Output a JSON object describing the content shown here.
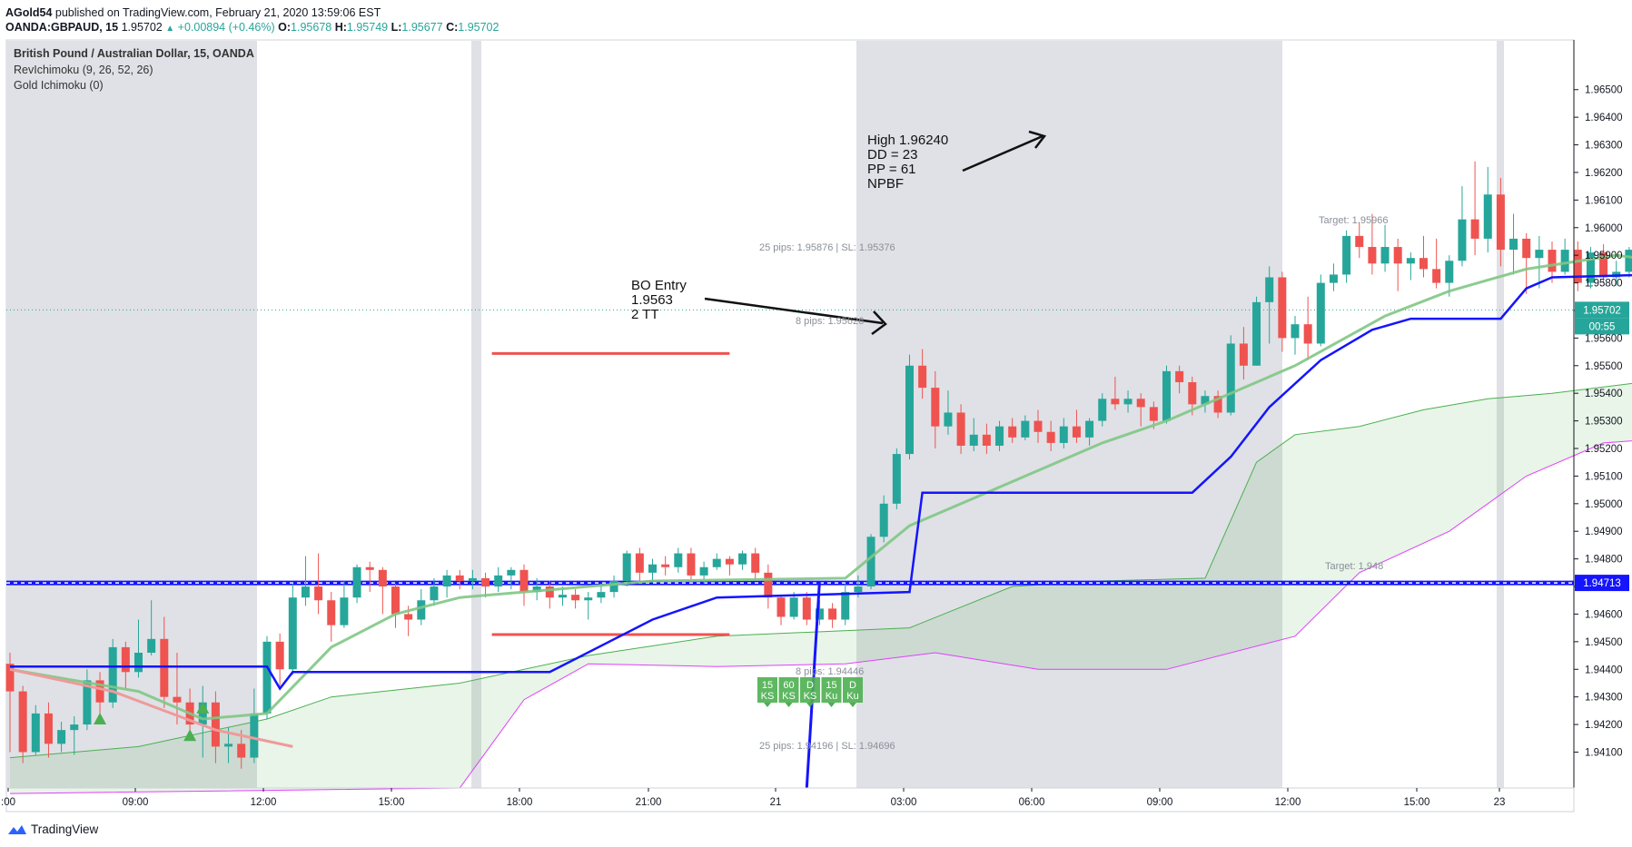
{
  "header": {
    "user": "AGold54",
    "published_text": "published on TradingView.com, February 21, 2020 13:59:06 EST",
    "symbol": "OANDA:GBPAUD, 15",
    "last": "1.95702",
    "change": "+0.00894 (+0.46%)",
    "o_label": "O:",
    "o": "1.95678",
    "h_label": "H:",
    "h": "1.95749",
    "l_label": "L:",
    "l": "1.95677",
    "c_label": "C:",
    "c": "1.95702"
  },
  "legend": {
    "title": "British Pound / Australian Dollar, 15, OANDA",
    "ind1": "RevIchimoku (9, 26, 52, 26)",
    "ind2": "Gold Ichimoku (0)"
  },
  "brand": {
    "name": "TradingView"
  },
  "chart_data": {
    "type": "candlestick",
    "ylim": [
      1.9397,
      1.9668
    ],
    "y_ticks": [
      "1.96500",
      "1.96400",
      "1.96300",
      "1.96200",
      "1.96100",
      "1.96000",
      "1.95900",
      "1.95800",
      "1.95700",
      "1.95600",
      "1.95500",
      "1.95400",
      "1.95300",
      "1.95200",
      "1.95100",
      "1.95000",
      "1.94900",
      "1.94800",
      "1.94700",
      "1.94600",
      "1.94500",
      "1.94400",
      "1.94300",
      "1.94200",
      "1.94100"
    ],
    "x_ticks": [
      ":00",
      "09:00",
      "12:00",
      "15:00",
      "18:00",
      "21:00",
      "21",
      "03:00",
      "06:00",
      "09:00",
      "12:00",
      "15:00",
      "23"
    ],
    "price_badges": [
      {
        "label": "1.95702",
        "value": 1.95702,
        "color": "#26a69a"
      },
      {
        "label": "00:55",
        "value": 1.9565,
        "color": "#26a69a"
      },
      {
        "label": "1.94713",
        "value": 1.94713,
        "color": "#1414ff"
      }
    ],
    "horizontal_levels": [
      {
        "value": 1.94713,
        "color": "#1414ff"
      },
      {
        "value": 1.95544,
        "color": "#ef5350"
      },
      {
        "value": 1.94526,
        "color": "#ef5350"
      }
    ],
    "candles": [
      [
        1.9442,
        1.9432,
        1.9446,
        1.941
      ],
      [
        1.9432,
        1.941,
        1.9434,
        1.9406
      ],
      [
        1.941,
        1.9424,
        1.9427,
        1.9409
      ],
      [
        1.9424,
        1.9413,
        1.9428,
        1.9408
      ],
      [
        1.9413,
        1.9418,
        1.9421,
        1.941
      ],
      [
        1.9418,
        1.942,
        1.9423,
        1.9409
      ],
      [
        1.942,
        1.9436,
        1.944,
        1.9418
      ],
      [
        1.9436,
        1.9428,
        1.9439,
        1.9422
      ],
      [
        1.9428,
        1.9448,
        1.9451,
        1.9426
      ],
      [
        1.9448,
        1.9439,
        1.945,
        1.9433
      ],
      [
        1.9439,
        1.9446,
        1.9458,
        1.9437
      ],
      [
        1.9446,
        1.9451,
        1.9465,
        1.9445
      ],
      [
        1.9451,
        1.943,
        1.9459,
        1.9426
      ],
      [
        1.943,
        1.9428,
        1.9446,
        1.942
      ],
      [
        1.9428,
        1.942,
        1.9433,
        1.9415
      ],
      [
        1.942,
        1.9428,
        1.9434,
        1.9408
      ],
      [
        1.9428,
        1.9412,
        1.9432,
        1.9406
      ],
      [
        1.9412,
        1.9413,
        1.9419,
        1.9406
      ],
      [
        1.9413,
        1.9408,
        1.9418,
        1.9404
      ],
      [
        1.9408,
        1.9424,
        1.9433,
        1.9406
      ],
      [
        1.9424,
        1.945,
        1.9452,
        1.9422
      ],
      [
        1.945,
        1.944,
        1.9453,
        1.9434
      ],
      [
        1.944,
        1.9466,
        1.9471,
        1.9438
      ],
      [
        1.9466,
        1.947,
        1.9481,
        1.9463
      ],
      [
        1.947,
        1.9465,
        1.9482,
        1.946
      ],
      [
        1.9465,
        1.9456,
        1.9468,
        1.945
      ],
      [
        1.9456,
        1.9466,
        1.9472,
        1.9455
      ],
      [
        1.9466,
        1.9477,
        1.9478,
        1.9464
      ],
      [
        1.9477,
        1.9476,
        1.9479,
        1.9468
      ],
      [
        1.9476,
        1.947,
        1.9477,
        1.946
      ],
      [
        1.947,
        1.946,
        1.9471,
        1.9455
      ],
      [
        1.946,
        1.9458,
        1.9463,
        1.9452
      ],
      [
        1.9458,
        1.9465,
        1.9469,
        1.9456
      ],
      [
        1.9465,
        1.947,
        1.9473,
        1.9463
      ],
      [
        1.947,
        1.9474,
        1.9476,
        1.9466
      ],
      [
        1.9474,
        1.9472,
        1.9476,
        1.9469
      ],
      [
        1.9472,
        1.9473,
        1.9476,
        1.9469
      ],
      [
        1.9473,
        1.947,
        1.9475,
        1.9466
      ],
      [
        1.947,
        1.9474,
        1.9477,
        1.9468
      ],
      [
        1.9474,
        1.9476,
        1.9477,
        1.9469
      ],
      [
        1.9476,
        1.9468,
        1.9478,
        1.9463
      ],
      [
        1.9468,
        1.947,
        1.9473,
        1.9465
      ],
      [
        1.947,
        1.9466,
        1.9472,
        1.9462
      ],
      [
        1.9466,
        1.9467,
        1.947,
        1.9463
      ],
      [
        1.9467,
        1.9465,
        1.9469,
        1.9462
      ],
      [
        1.9465,
        1.9466,
        1.9468,
        1.9458
      ],
      [
        1.9466,
        1.9468,
        1.9471,
        1.9464
      ],
      [
        1.9468,
        1.9472,
        1.9474,
        1.9466
      ],
      [
        1.9472,
        1.9482,
        1.9483,
        1.947
      ],
      [
        1.9482,
        1.9475,
        1.9484,
        1.9472
      ],
      [
        1.9475,
        1.9478,
        1.948,
        1.9472
      ],
      [
        1.9478,
        1.9477,
        1.9481,
        1.9474
      ],
      [
        1.9477,
        1.9482,
        1.9484,
        1.9475
      ],
      [
        1.9482,
        1.9474,
        1.9484,
        1.9472
      ],
      [
        1.9474,
        1.9477,
        1.9479,
        1.9471
      ],
      [
        1.9477,
        1.948,
        1.9482,
        1.9476
      ],
      [
        1.948,
        1.9478,
        1.9481,
        1.9474
      ],
      [
        1.9478,
        1.9482,
        1.9483,
        1.9476
      ],
      [
        1.9482,
        1.9475,
        1.9484,
        1.9472
      ],
      [
        1.9475,
        1.9466,
        1.9478,
        1.9462
      ],
      [
        1.9466,
        1.9459,
        1.9467,
        1.9456
      ],
      [
        1.9459,
        1.9466,
        1.9468,
        1.9458
      ],
      [
        1.9466,
        1.9458,
        1.9468,
        1.9456
      ],
      [
        1.9458,
        1.9462,
        1.9465,
        1.9456
      ],
      [
        1.9462,
        1.9458,
        1.9464,
        1.9455
      ],
      [
        1.9458,
        1.9468,
        1.9471,
        1.9456
      ],
      [
        1.9468,
        1.947,
        1.9474,
        1.9466
      ],
      [
        1.947,
        1.9488,
        1.9489,
        1.9469
      ],
      [
        1.9488,
        1.95,
        1.9503,
        1.9486
      ],
      [
        1.95,
        1.9518,
        1.952,
        1.9498
      ],
      [
        1.9518,
        1.955,
        1.9554,
        1.9516
      ],
      [
        1.955,
        1.9542,
        1.9556,
        1.9538
      ],
      [
        1.9542,
        1.9528,
        1.9548,
        1.952
      ],
      [
        1.9528,
        1.9533,
        1.9541,
        1.9525
      ],
      [
        1.9533,
        1.9521,
        1.9536,
        1.9518
      ],
      [
        1.9521,
        1.9525,
        1.9531,
        1.9519
      ],
      [
        1.9525,
        1.9521,
        1.9529,
        1.9518
      ],
      [
        1.9521,
        1.9528,
        1.953,
        1.9519
      ],
      [
        1.9528,
        1.9524,
        1.9531,
        1.9522
      ],
      [
        1.9524,
        1.953,
        1.9532,
        1.9523
      ],
      [
        1.953,
        1.9526,
        1.9534,
        1.9522
      ],
      [
        1.9526,
        1.9522,
        1.953,
        1.9519
      ],
      [
        1.9522,
        1.9528,
        1.9531,
        1.952
      ],
      [
        1.9528,
        1.9524,
        1.9534,
        1.9522
      ],
      [
        1.9524,
        1.953,
        1.9531,
        1.9521
      ],
      [
        1.953,
        1.9538,
        1.954,
        1.9528
      ],
      [
        1.9538,
        1.9536,
        1.9546,
        1.9534
      ],
      [
        1.9536,
        1.9538,
        1.9541,
        1.9533
      ],
      [
        1.9538,
        1.9535,
        1.954,
        1.9528
      ],
      [
        1.9535,
        1.953,
        1.9537,
        1.9527
      ],
      [
        1.953,
        1.9548,
        1.955,
        1.9529
      ],
      [
        1.9548,
        1.9544,
        1.955,
        1.954
      ],
      [
        1.9544,
        1.9536,
        1.9546,
        1.9532
      ],
      [
        1.9536,
        1.9539,
        1.9541,
        1.9533
      ],
      [
        1.9539,
        1.9533,
        1.9541,
        1.9531
      ],
      [
        1.9533,
        1.9558,
        1.9561,
        1.9532
      ],
      [
        1.9558,
        1.955,
        1.9564,
        1.9545
      ],
      [
        1.955,
        1.9573,
        1.9575,
        1.955
      ],
      [
        1.9573,
        1.9582,
        1.9586,
        1.9558
      ],
      [
        1.9582,
        1.956,
        1.9584,
        1.9555
      ],
      [
        1.956,
        1.9565,
        1.9568,
        1.9554
      ],
      [
        1.9565,
        1.9558,
        1.9575,
        1.9552
      ],
      [
        1.9558,
        1.958,
        1.9583,
        1.9557
      ],
      [
        1.958,
        1.9583,
        1.9587,
        1.9577
      ],
      [
        1.9583,
        1.9597,
        1.9599,
        1.958
      ],
      [
        1.9597,
        1.9593,
        1.9602,
        1.9589
      ],
      [
        1.9593,
        1.9587,
        1.9605,
        1.9583
      ],
      [
        1.9587,
        1.9593,
        1.9601,
        1.9584
      ],
      [
        1.9593,
        1.9587,
        1.9596,
        1.9577
      ],
      [
        1.9587,
        1.9589,
        1.9591,
        1.9581
      ],
      [
        1.9589,
        1.9585,
        1.9597,
        1.9582
      ],
      [
        1.9585,
        1.958,
        1.9596,
        1.9578
      ],
      [
        1.958,
        1.9588,
        1.959,
        1.9575
      ],
      [
        1.9588,
        1.9603,
        1.9615,
        1.9586
      ],
      [
        1.9603,
        1.9596,
        1.9624,
        1.959
      ],
      [
        1.9596,
        1.9612,
        1.9622,
        1.9591
      ],
      [
        1.9612,
        1.9592,
        1.9618,
        1.9586
      ],
      [
        1.9592,
        1.9596,
        1.9605,
        1.9583
      ],
      [
        1.9596,
        1.9589,
        1.9598,
        1.9576
      ],
      [
        1.9589,
        1.9592,
        1.9597,
        1.9578
      ],
      [
        1.9592,
        1.9584,
        1.9595,
        1.958
      ],
      [
        1.9584,
        1.9592,
        1.9596,
        1.9583
      ],
      [
        1.9592,
        1.958,
        1.9595,
        1.9577
      ],
      [
        1.958,
        1.9591,
        1.9593,
        1.9578
      ],
      [
        1.9591,
        1.9582,
        1.9594,
        1.958
      ],
      [
        1.9582,
        1.9584,
        1.9588,
        1.9579
      ],
      [
        1.9584,
        1.9592,
        1.9593,
        1.9582
      ],
      [
        1.9592,
        1.9587,
        1.9594,
        1.9581
      ],
      [
        1.9587,
        1.9589,
        1.9595,
        1.9583
      ],
      [
        1.9589,
        1.9586,
        1.9593,
        1.958
      ],
      [
        1.9586,
        1.9607,
        1.9609,
        1.9585
      ],
      [
        1.9607,
        1.9578,
        1.9616,
        1.9574
      ],
      [
        1.9578,
        1.9563,
        1.958,
        1.9545
      ],
      [
        1.9563,
        1.9555,
        1.9568,
        1.953
      ],
      [
        1.9555,
        1.9563,
        1.9565,
        1.9551
      ],
      [
        1.9563,
        1.9549,
        1.9566,
        1.9532
      ],
      [
        1.9549,
        1.9537,
        1.9552,
        1.953
      ],
      [
        1.9537,
        1.9535,
        1.954,
        1.9528
      ],
      [
        1.9535,
        1.9544,
        1.9548,
        1.9528
      ],
      [
        1.9544,
        1.9548,
        1.9551,
        1.9539
      ],
      [
        1.9548,
        1.9552,
        1.9555,
        1.9543
      ],
      [
        1.9552,
        1.9556,
        1.9558,
        1.9548
      ],
      [
        1.9556,
        1.9562,
        1.9564,
        1.9553
      ],
      [
        1.9562,
        1.9566,
        1.957,
        1.9558
      ],
      [
        1.9566,
        1.957,
        1.9572,
        1.9562
      ],
      [
        1.957,
        1.9567,
        1.9571,
        1.9563
      ],
      [
        1.9567,
        1.9573,
        1.9576,
        1.9565
      ],
      [
        1.9573,
        1.957,
        1.9575,
        1.9562
      ],
      [
        1.957,
        1.9568,
        1.9572,
        1.9564
      ],
      [
        1.9568,
        1.957,
        1.9575,
        1.9566
      ]
    ],
    "kijun": [
      [
        0,
        1.9441
      ],
      [
        20,
        1.9441
      ],
      [
        21,
        1.9433
      ],
      [
        22,
        1.9439
      ],
      [
        42,
        1.9439
      ],
      [
        50,
        1.9458
      ],
      [
        55,
        1.9466
      ],
      [
        70,
        1.9468
      ],
      [
        71,
        1.9504
      ],
      [
        92,
        1.9504
      ],
      [
        95,
        1.9517
      ],
      [
        98,
        1.9535
      ],
      [
        102,
        1.9552
      ],
      [
        106,
        1.9563
      ],
      [
        109,
        1.9567
      ],
      [
        116,
        1.9567
      ],
      [
        118,
        1.9578
      ],
      [
        120,
        1.9582
      ],
      [
        128,
        1.9583
      ],
      [
        133,
        1.9587
      ],
      [
        136,
        1.9589
      ],
      [
        137,
        1.958
      ],
      [
        139,
        1.9581
      ],
      [
        155,
        1.9581
      ]
    ],
    "tenkan": [
      [
        0,
        1.944
      ],
      [
        10,
        1.9432
      ],
      [
        15,
        1.9422
      ],
      [
        20,
        1.9424
      ],
      [
        25,
        1.9448
      ],
      [
        30,
        1.946
      ],
      [
        35,
        1.9466
      ],
      [
        50,
        1.9472
      ],
      [
        65,
        1.9473
      ],
      [
        70,
        1.9492
      ],
      [
        75,
        1.9502
      ],
      [
        85,
        1.9522
      ],
      [
        90,
        1.953
      ],
      [
        95,
        1.954
      ],
      [
        100,
        1.955
      ],
      [
        107,
        1.9568
      ],
      [
        112,
        1.9577
      ],
      [
        118,
        1.9585
      ],
      [
        125,
        1.959
      ],
      [
        130,
        1.9587
      ],
      [
        137,
        1.9582
      ],
      [
        143,
        1.9572
      ],
      [
        150,
        1.9562
      ],
      [
        155,
        1.956
      ]
    ],
    "senkou_a": [
      [
        0,
        1.9408
      ],
      [
        10,
        1.9412
      ],
      [
        20,
        1.9422
      ],
      [
        25,
        1.943
      ],
      [
        35,
        1.9435
      ],
      [
        45,
        1.9445
      ],
      [
        55,
        1.9452
      ],
      [
        70,
        1.9455
      ],
      [
        78,
        1.947
      ],
      [
        85,
        1.9472
      ],
      [
        93,
        1.9473
      ],
      [
        97,
        1.9515
      ],
      [
        100,
        1.9525
      ],
      [
        105,
        1.9528
      ],
      [
        110,
        1.9534
      ],
      [
        115,
        1.9538
      ],
      [
        120,
        1.954
      ],
      [
        127,
        1.9544
      ],
      [
        133,
        1.9559
      ],
      [
        138,
        1.9563
      ],
      [
        141,
        1.956
      ],
      [
        145,
        1.9563
      ],
      [
        152,
        1.9562
      ],
      [
        156,
        1.9568
      ],
      [
        160,
        1.9572
      ],
      [
        165,
        1.9576
      ],
      [
        170,
        1.9578
      ]
    ],
    "senkou_b": [
      [
        0,
        1.9395
      ],
      [
        35,
        1.9397
      ],
      [
        40,
        1.9429
      ],
      [
        45,
        1.9442
      ],
      [
        55,
        1.9441
      ],
      [
        65,
        1.9442
      ],
      [
        72,
        1.9446
      ],
      [
        80,
        1.944
      ],
      [
        90,
        1.944
      ],
      [
        100,
        1.9452
      ],
      [
        105,
        1.9475
      ],
      [
        112,
        1.949
      ],
      [
        118,
        1.951
      ],
      [
        124,
        1.9522
      ],
      [
        130,
        1.9524
      ],
      [
        135,
        1.9536
      ],
      [
        140,
        1.9538
      ],
      [
        145,
        1.9541
      ],
      [
        150,
        1.955
      ],
      [
        155,
        1.9553
      ],
      [
        160,
        1.956
      ],
      [
        165,
        1.9567
      ],
      [
        170,
        1.957
      ]
    ],
    "annotations": [
      {
        "lines": [
          "High 1.96240",
          "DD = 23",
          "PP = 61",
          "NPBF"
        ]
      },
      {
        "lines": [
          "BO Entry",
          "1.9563",
          "2 TT"
        ]
      }
    ],
    "small_labels": [
      {
        "text": "25 pips: 1.95876 | SL: 1.95376"
      },
      {
        "text": "8 pips: 1.95626"
      },
      {
        "text": "8 pips: 1.94446"
      },
      {
        "text": "25 pips: 1.94196 | SL: 1.94696"
      },
      {
        "text": "Target: 1.95966"
      },
      {
        "text": "Target: 1.948"
      }
    ],
    "tags": [
      "15\nKS",
      "60\nKS",
      "D\nKS",
      "15\nKu",
      "D\nKu"
    ]
  }
}
